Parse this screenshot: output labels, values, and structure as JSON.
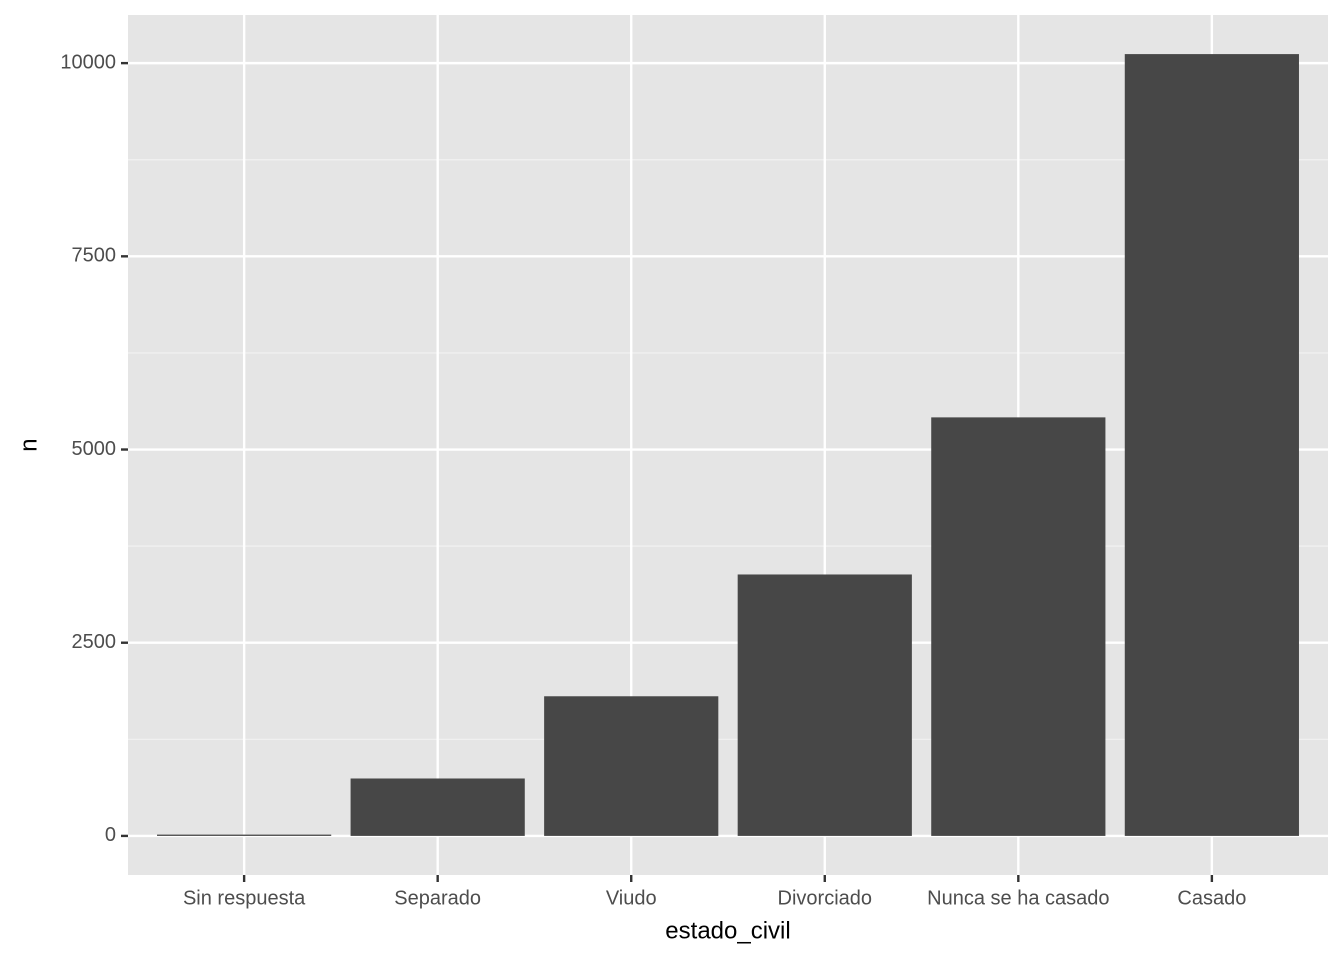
{
  "chart_data": {
    "type": "bar",
    "x_label": "estado_civil",
    "y_label": "n",
    "categories": [
      "Sin respuesta",
      "Separado",
      "Viudo",
      "Divorciado",
      "Nunca se ha casado",
      "Casado"
    ],
    "values": [
      17,
      743,
      1807,
      3383,
      5416,
      10117
    ],
    "color": "#474747",
    "ylim": [
      -505.85,
      10622.85
    ],
    "yticks": [
      0,
      2500,
      5000,
      7500,
      10000
    ],
    "y_minor_ticks": [
      1250,
      3750,
      6250,
      8750
    ],
    "grid": true
  }
}
